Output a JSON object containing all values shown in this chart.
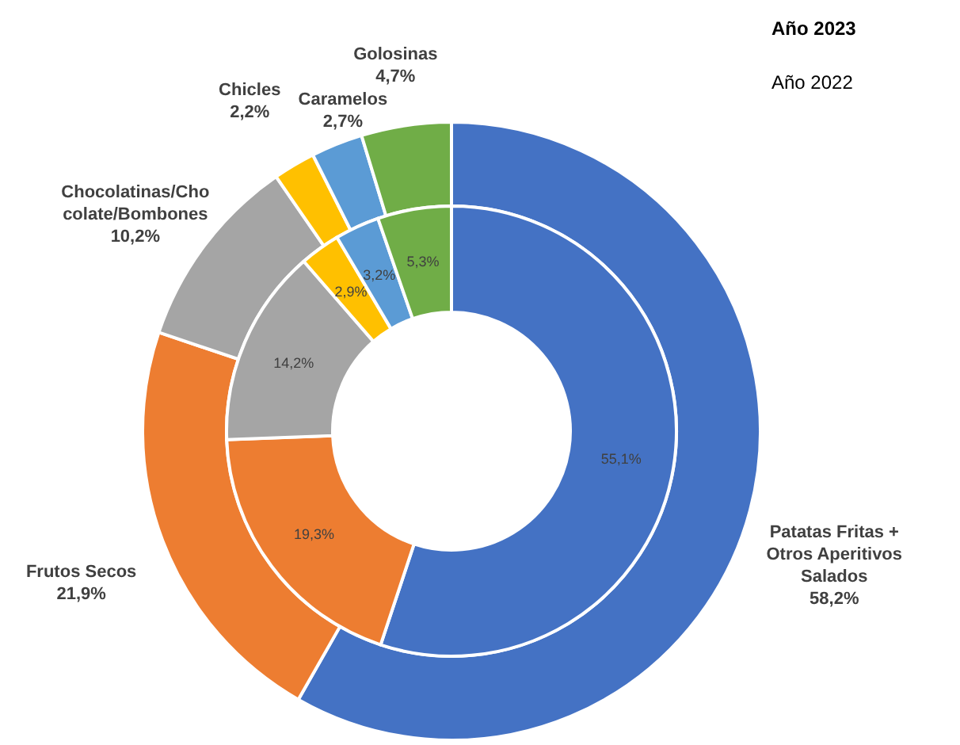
{
  "chart_data": {
    "type": "donut",
    "legend": "top right",
    "categories": [
      "Patatas Fritas + Otros Aperitivos Salados",
      "Frutos Secos",
      "Chocolatinas/Chocolate/Bombones",
      "Chicles",
      "Caramelos",
      "Golosinas"
    ],
    "colors": [
      "#4472c4",
      "#ed7d31",
      "#a5a5a5",
      "#ffc000",
      "#5b9bd5",
      "#70ad47"
    ],
    "series": [
      {
        "name": "Año 2023",
        "values": [
          58.2,
          21.9,
          10.2,
          2.2,
          2.7,
          4.7
        ],
        "value_labels": [
          "58,2%",
          "21,9%",
          "10,2%",
          "2,2%",
          "2,7%",
          "4,7%"
        ]
      },
      {
        "name": "Año 2022",
        "values": [
          55.1,
          19.3,
          14.2,
          2.9,
          3.2,
          5.3
        ],
        "value_labels": [
          "55,1%",
          "19,3%",
          "14,2%",
          "2,9%",
          "3,2%",
          "5,3%"
        ]
      }
    ]
  }
}
